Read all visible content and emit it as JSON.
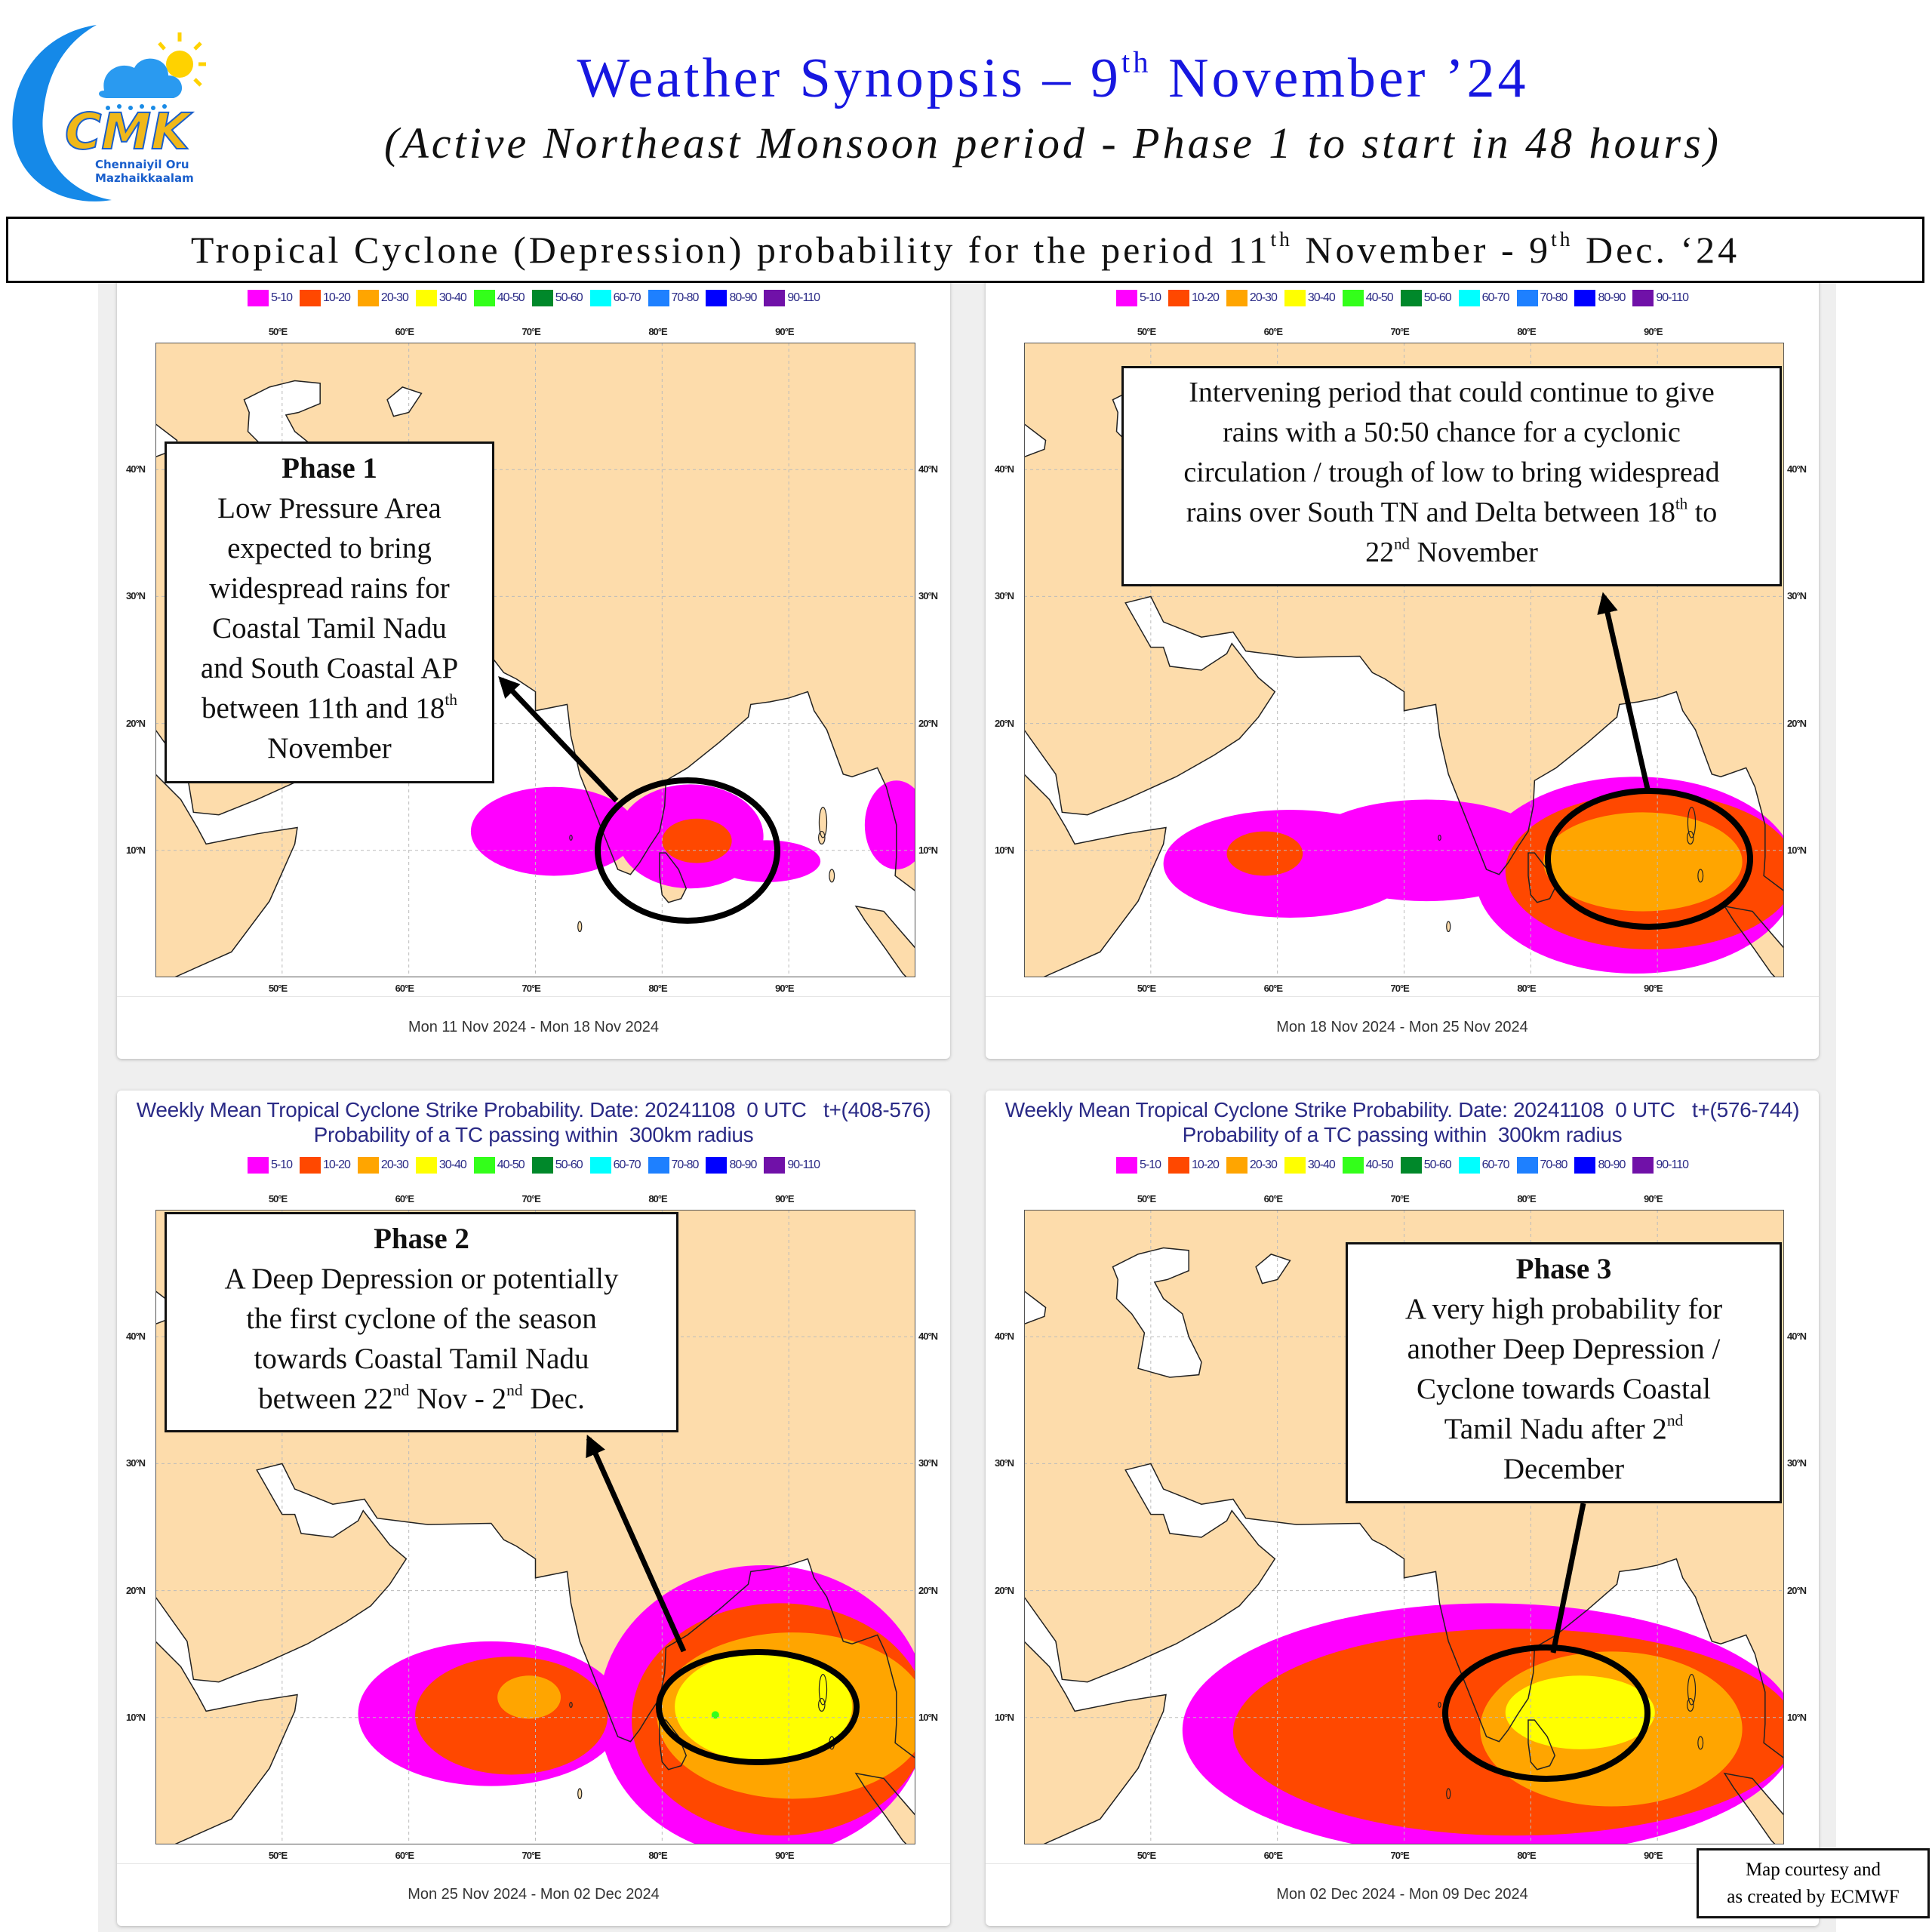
{
  "logo": {
    "letters": "CMK",
    "tagline_1": "Chennaiyil Oru",
    "tagline_2": "Mazhaikkaalam"
  },
  "header": {
    "title_pre": "Weather Synopsis – 9",
    "title_sup": "th",
    "title_post": " November ’24",
    "subtitle": "(Active Northeast Monsoon period - Phase 1 to start in 48 hours)"
  },
  "period_box": {
    "pre": "Tropical Cyclone (Depression) probability for the period 11",
    "sup1": "th",
    "mid": " November - 9",
    "sup2": "th",
    "post": " Dec. ‘24"
  },
  "legend": [
    {
      "label": "5-10",
      "color": "#ff00ff"
    },
    {
      "label": "10-20",
      "color": "#ff4800"
    },
    {
      "label": "20-30",
      "color": "#ffa500"
    },
    {
      "label": "30-40",
      "color": "#ffff00"
    },
    {
      "label": "40-50",
      "color": "#33ff1a"
    },
    {
      "label": "50-60",
      "color": "#00882a"
    },
    {
      "label": "60-70",
      "color": "#00ffff"
    },
    {
      "label": "70-80",
      "color": "#1e80ff"
    },
    {
      "label": "80-90",
      "color": "#0000ff"
    },
    {
      "label": "90-110",
      "color": "#7011a8"
    }
  ],
  "map": {
    "lon_range": [
      40,
      100
    ],
    "lat_range": [
      0,
      50
    ],
    "lon_ticks": [
      "50°E",
      "60°E",
      "70°E",
      "80°E",
      "90°E"
    ],
    "lat_ticks": [
      "10°N",
      "20°N",
      "30°N",
      "40°N"
    ],
    "land_color": "#fddcab",
    "sea_color": "#ffffff"
  },
  "panels": [
    {
      "title": "",
      "subtitle": "",
      "date_range": "Mon 11 Nov 2024 - Mon 18 Nov 2024",
      "regions": [
        {
          "band": "5-10",
          "lon": [
            64.9,
            78
          ],
          "lat": [
            8,
            15
          ]
        },
        {
          "band": "5-10",
          "lon": [
            76.5,
            88
          ],
          "lat": [
            7,
            15.2
          ]
        },
        {
          "band": "5-10",
          "lon": [
            84,
            92.5
          ],
          "lat": [
            7.5,
            10.8
          ]
        },
        {
          "band": "5-10",
          "lon": [
            96,
            101
          ],
          "lat": [
            8.5,
            15.5
          ]
        },
        {
          "band": "10-20",
          "lon": [
            80,
            85.5
          ],
          "lat": [
            9,
            12.5
          ]
        }
      ]
    },
    {
      "title": "",
      "subtitle": "",
      "date_range": "Mon 18 Nov 2024 - Mon 25 Nov 2024",
      "regions": [
        {
          "band": "5-10",
          "lon": [
            51,
            71
          ],
          "lat": [
            4.7,
            13.2
          ]
        },
        {
          "band": "5-10",
          "lon": [
            62,
            81.5
          ],
          "lat": [
            6,
            14
          ]
        },
        {
          "band": "5-10",
          "lon": [
            75.6,
            101
          ],
          "lat": [
            0.3,
            15.8
          ]
        },
        {
          "band": "10-20",
          "lon": [
            56,
            62
          ],
          "lat": [
            8,
            11.5
          ]
        },
        {
          "band": "10-20",
          "lon": [
            78,
            101
          ],
          "lat": [
            2.2,
            14.5
          ]
        },
        {
          "band": "20-30",
          "lon": [
            81,
            96.7
          ],
          "lat": [
            5.2,
            13
          ]
        }
      ]
    },
    {
      "title": "Weekly Mean Tropical Cyclone Strike Probability. Date: 20241108  0 UTC   t+(408-576)",
      "subtitle": "Probability of a TC passing within  300km radius",
      "date_range": "Mon 25 Nov 2024 - Mon 02 Dec 2024",
      "regions": [
        {
          "band": "5-10",
          "lon": [
            56,
            77
          ],
          "lat": [
            4.6,
            16
          ]
        },
        {
          "band": "5-10",
          "lon": [
            75,
            101
          ],
          "lat": [
            -1,
            22
          ]
        },
        {
          "band": "10-20",
          "lon": [
            60.5,
            75.7
          ],
          "lat": [
            5.5,
            14.8
          ]
        },
        {
          "band": "10-20",
          "lon": [
            77.6,
            101
          ],
          "lat": [
            0.7,
            19
          ]
        },
        {
          "band": "20-30",
          "lon": [
            67,
            72
          ],
          "lat": [
            9.9,
            13.3
          ]
        },
        {
          "band": "20-30",
          "lon": [
            79.6,
            101
          ],
          "lat": [
            3.6,
            16.7
          ]
        },
        {
          "band": "30-40",
          "lon": [
            81,
            95
          ],
          "lat": [
            6.5,
            15.2
          ]
        },
        {
          "band": "40-50",
          "lon": [
            83.9,
            84.5
          ],
          "lat": [
            9.9,
            10.5
          ]
        }
      ]
    },
    {
      "title": "Weekly Mean Tropical Cyclone Strike Probability. Date: 20241108  0 UTC   t+(576-744)",
      "subtitle": "Probability of a TC passing within  300km radius",
      "date_range": "Mon 02 Dec 2024 - Mon 09 Dec 2024",
      "regions": [
        {
          "band": "5-10",
          "lon": [
            52.5,
            101
          ],
          "lat": [
            -1,
            19
          ]
        },
        {
          "band": "10-20",
          "lon": [
            56.5,
            101
          ],
          "lat": [
            0.7,
            17
          ]
        },
        {
          "band": "20-30",
          "lon": [
            76,
            96.7
          ],
          "lat": [
            3,
            15.2
          ]
        },
        {
          "band": "30-40",
          "lon": [
            78,
            89.8
          ],
          "lat": [
            7.5,
            13.3
          ]
        }
      ]
    }
  ],
  "annotations": {
    "phase1": {
      "heading": "Phase 1",
      "lines": [
        [
          "Low Pressure Area"
        ],
        [
          "expected to bring"
        ],
        [
          "widespread rains for"
        ],
        [
          "Coastal Tamil Nadu"
        ],
        [
          "and South Coastal AP"
        ],
        [
          "between 11th and 18",
          "th"
        ],
        [
          "November"
        ]
      ]
    },
    "intervening": {
      "heading": "",
      "lines": [
        [
          "Intervening period that could continue to give"
        ],
        [
          "rains with a 50:50 chance for a cyclonic"
        ],
        [
          "circulation / trough of low to bring widespread"
        ],
        [
          "rains over South TN and Delta between 18",
          "th",
          " to"
        ],
        [
          "22",
          "nd",
          " November"
        ]
      ]
    },
    "phase2": {
      "heading": "Phase 2",
      "lines": [
        [
          "A Deep Depression or potentially"
        ],
        [
          "the first cyclone of the season"
        ],
        [
          "towards Coastal Tamil Nadu"
        ],
        [
          "between 22",
          "nd",
          " Nov - 2",
          "nd",
          " Dec."
        ]
      ]
    },
    "phase3": {
      "heading": "Phase 3",
      "lines": [
        [
          "A very high probability for"
        ],
        [
          "another Deep Depression /"
        ],
        [
          "Cyclone towards Coastal"
        ],
        [
          "Tamil Nadu after 2",
          "nd"
        ],
        [
          "December"
        ]
      ]
    }
  },
  "credit": {
    "line1": "Map courtesy and",
    "line2": "as created by ECMWF"
  }
}
